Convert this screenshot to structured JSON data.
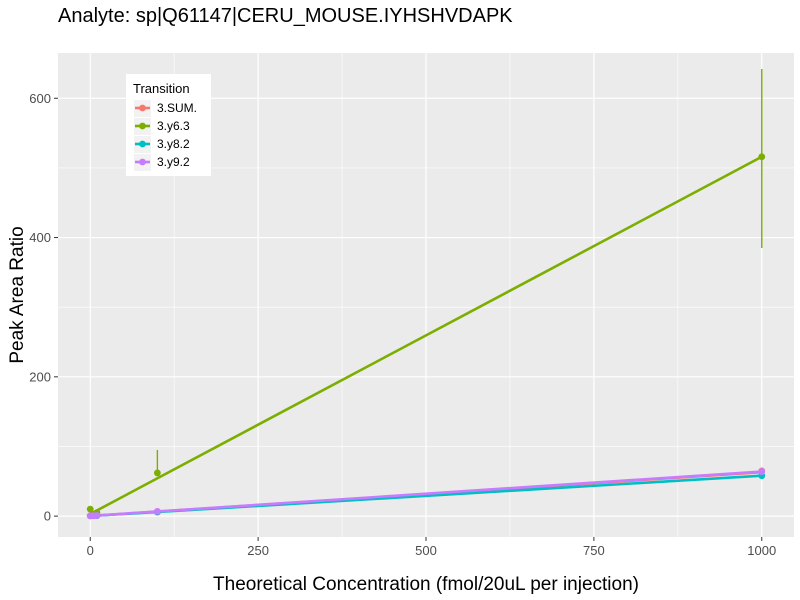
{
  "chart_data": {
    "type": "line",
    "title": "Analyte: sp|Q61147|CERU_MOUSE.IYHSHVDAPK",
    "xlabel": "Theoretical Concentration (fmol/20uL per injection)",
    "ylabel": "Peak Area Ratio",
    "xlim": [
      -48,
      1048
    ],
    "ylim": [
      -30,
      665
    ],
    "x_ticks": [
      0,
      250,
      500,
      750,
      1000
    ],
    "x_tick_labels": [
      "0",
      "250",
      "500",
      "750",
      "1000"
    ],
    "y_ticks": [
      0,
      200,
      400,
      600
    ],
    "y_tick_labels": [
      "0",
      "200",
      "400",
      "600"
    ],
    "grid": true,
    "legend": {
      "title": "Transition",
      "position": "top-left"
    },
    "series": [
      {
        "name": "3.SUM.",
        "color": "#F8766D",
        "points": [
          {
            "x": 0,
            "y": 0.5
          },
          {
            "x": 1,
            "y": 0.5
          },
          {
            "x": 5,
            "y": 0.5
          },
          {
            "x": 10,
            "y": 0.8
          },
          {
            "x": 100,
            "y": 6.5
          },
          {
            "x": 1000,
            "y": 65
          }
        ],
        "fit": [
          [
            0,
            0.2
          ],
          [
            1000,
            63
          ]
        ]
      },
      {
        "name": "3.y6.3",
        "color": "#7CAE00",
        "points": [
          {
            "x": 0,
            "y": 10,
            "ymin": 4,
            "ymax": 14
          },
          {
            "x": 10,
            "y": 5
          },
          {
            "x": 100,
            "y": 62,
            "ymin": 60,
            "ymax": 95
          },
          {
            "x": 1000,
            "y": 516,
            "ymin": 385,
            "ymax": 642
          }
        ],
        "fit": [
          [
            0,
            3
          ],
          [
            1000,
            516
          ]
        ]
      },
      {
        "name": "3.y8.2",
        "color": "#00BFC4",
        "points": [
          {
            "x": 0,
            "y": 0.3
          },
          {
            "x": 5,
            "y": 0.5
          },
          {
            "x": 10,
            "y": 0.7
          },
          {
            "x": 100,
            "y": 5.8
          },
          {
            "x": 1000,
            "y": 58
          }
        ],
        "fit": [
          [
            0,
            0.2
          ],
          [
            1000,
            58
          ]
        ]
      },
      {
        "name": "3.y9.2",
        "color": "#C77CFF",
        "points": [
          {
            "x": 0,
            "y": 0.5
          },
          {
            "x": 5,
            "y": 0.6
          },
          {
            "x": 10,
            "y": 0.9
          },
          {
            "x": 100,
            "y": 6.8
          },
          {
            "x": 1000,
            "y": 64
          }
        ],
        "fit": [
          [
            0,
            0.3
          ],
          [
            1000,
            64
          ]
        ]
      }
    ]
  }
}
